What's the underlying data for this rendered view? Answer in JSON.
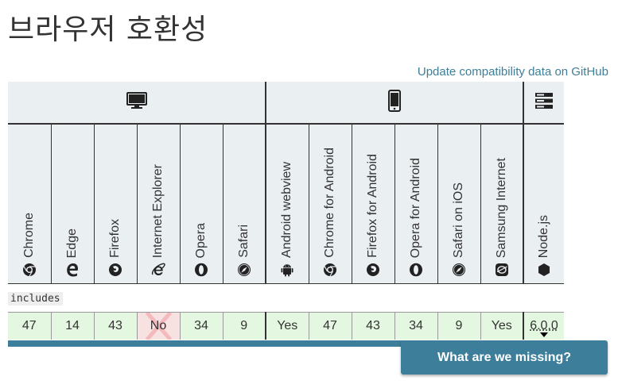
{
  "page": {
    "title": "브라우저 호환성",
    "github_link": "Update compatibility data on GitHub"
  },
  "platforms": [
    {
      "name": "desktop",
      "icon": "desktop-icon",
      "colspan": 6
    },
    {
      "name": "mobile",
      "icon": "mobile-icon",
      "colspan": 6
    },
    {
      "name": "server",
      "icon": "server-icon",
      "colspan": 1
    }
  ],
  "browsers": [
    {
      "label": "Chrome",
      "icon": "chrome-icon"
    },
    {
      "label": "Edge",
      "icon": "edge-icon"
    },
    {
      "label": "Firefox",
      "icon": "firefox-icon"
    },
    {
      "label": "Internet Explorer",
      "icon": "ie-icon"
    },
    {
      "label": "Opera",
      "icon": "opera-icon"
    },
    {
      "label": "Safari",
      "icon": "safari-icon"
    },
    {
      "label": "Android webview",
      "icon": "android-icon"
    },
    {
      "label": "Chrome for Android",
      "icon": "chrome-icon"
    },
    {
      "label": "Firefox for Android",
      "icon": "firefox-icon"
    },
    {
      "label": "Opera for Android",
      "icon": "opera-icon"
    },
    {
      "label": "Safari on iOS",
      "icon": "safari-icon"
    },
    {
      "label": "Samsung Internet",
      "icon": "samsung-icon"
    },
    {
      "label": "Node.js",
      "icon": "nodejs-icon"
    }
  ],
  "feature": {
    "name": "includes",
    "support": [
      "47",
      "14",
      "43",
      "No",
      "34",
      "9",
      "Yes",
      "47",
      "43",
      "34",
      "9",
      "Yes",
      "6.0.0"
    ]
  },
  "colors": {
    "supported": "#e4f8e1",
    "unsupported": "#f8e1e1",
    "accent": "#3d7e9a"
  },
  "cta": {
    "label": "What are we missing?"
  }
}
